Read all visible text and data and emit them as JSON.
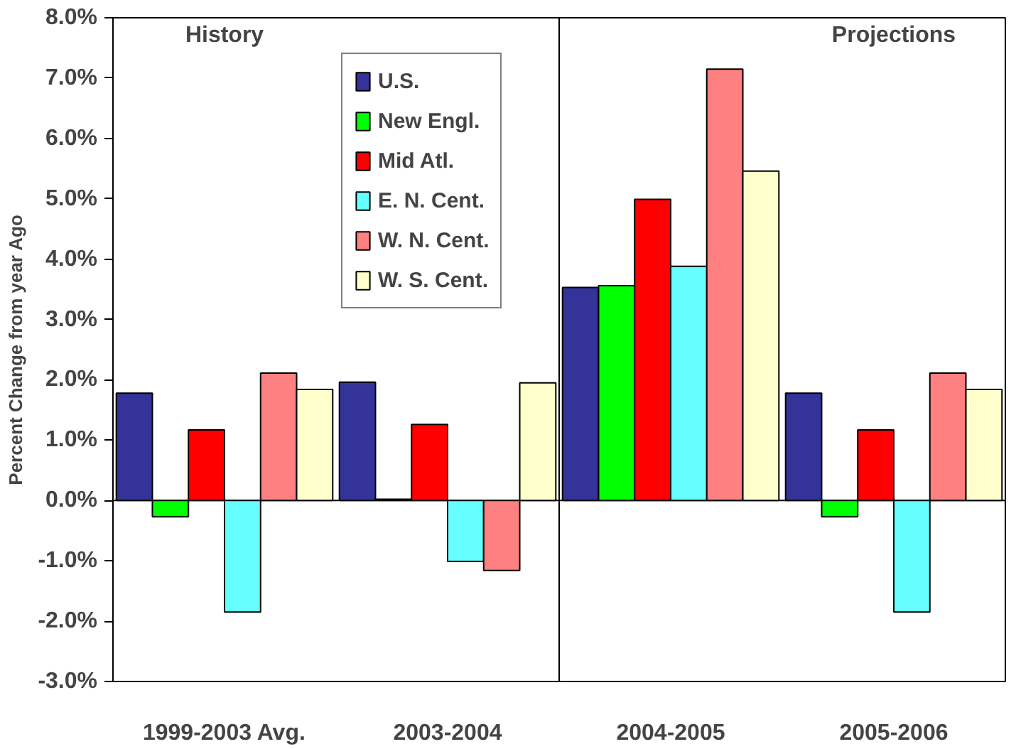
{
  "chart_data": {
    "type": "bar",
    "ylabel": "Percent Change from year Ago",
    "categories": [
      "1999-2003 Avg.",
      "2003-2004",
      "2004-2005",
      "2005-2006"
    ],
    "series": [
      {
        "name": "U.S.",
        "color": "#333399",
        "values": [
          1.78,
          1.96,
          3.53,
          1.78
        ]
      },
      {
        "name": "New Engl.",
        "color": "#00ff00",
        "values": [
          -0.27,
          0.02,
          3.56,
          -0.27
        ]
      },
      {
        "name": "Mid Atl.",
        "color": "#ff0000",
        "values": [
          1.17,
          1.26,
          4.99,
          1.17
        ]
      },
      {
        "name": "E. N. Cent.",
        "color": "#66ffff",
        "values": [
          -1.85,
          -1.01,
          3.88,
          -1.85
        ]
      },
      {
        "name": "W. N. Cent.",
        "color": "#ff8080",
        "values": [
          2.11,
          -1.16,
          7.15,
          2.11
        ]
      },
      {
        "name": "W. S. Cent.",
        "color": "#ffffcc",
        "values": [
          1.84,
          1.95,
          5.46,
          1.84
        ]
      }
    ],
    "ylim": [
      -3,
      8
    ],
    "yticks": [
      {
        "value": -3,
        "label": "-3.0%"
      },
      {
        "value": -2,
        "label": "-2.0%"
      },
      {
        "value": -1,
        "label": "-1.0%"
      },
      {
        "value": 0,
        "label": "0.0%"
      },
      {
        "value": 1,
        "label": "1.0%"
      },
      {
        "value": 2,
        "label": "2.0%"
      },
      {
        "value": 3,
        "label": "3.0%"
      },
      {
        "value": 4,
        "label": "4.0%"
      },
      {
        "value": 5,
        "label": "5.0%"
      },
      {
        "value": 6,
        "label": "6.0%"
      },
      {
        "value": 7,
        "label": "7.0%"
      },
      {
        "value": 8,
        "label": "8.0%"
      }
    ],
    "ref_lines": [
      {
        "axis": "y",
        "value": 0,
        "color": "#000000"
      }
    ],
    "annotations": [
      "History",
      "Projections"
    ],
    "legend": "top",
    "grid": false
  }
}
